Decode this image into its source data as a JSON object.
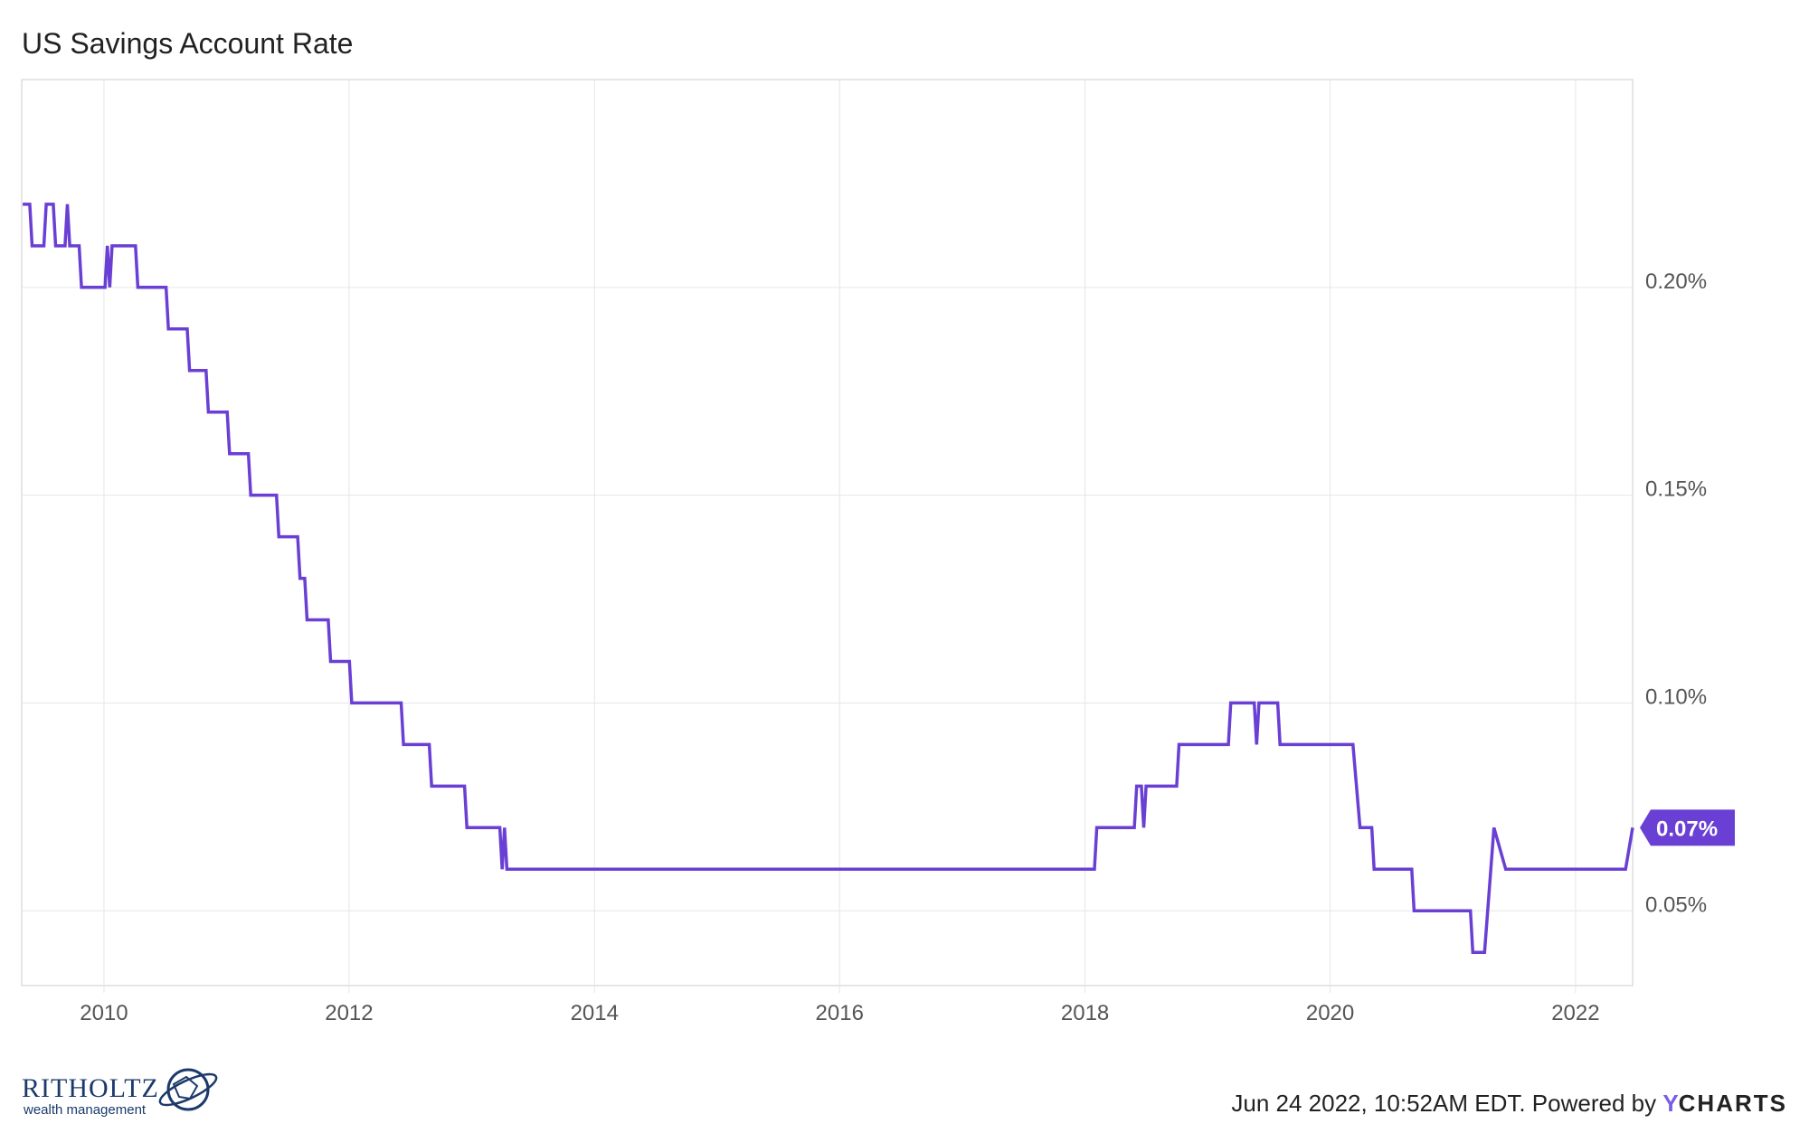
{
  "chart_data": {
    "type": "line",
    "title": "US Savings Account Rate",
    "x_axis": {
      "type": "date",
      "range": [
        "2009-05-01",
        "2022-06-20"
      ],
      "ticks": [
        "2010",
        "2012",
        "2014",
        "2016",
        "2018",
        "2020",
        "2022"
      ]
    },
    "y_axis": {
      "position": "right",
      "unit": "%",
      "range": [
        0.032,
        0.25
      ],
      "ticks": [
        "0.20%",
        "0.15%",
        "0.10%",
        "0.05%"
      ]
    },
    "grid": true,
    "series": [
      {
        "color": "#6a3fd4",
        "last_value_label": "0.07%",
        "points": [
          [
            "2009-05-04",
            0.22
          ],
          [
            "2009-05-25",
            0.22
          ],
          [
            "2009-06-01",
            0.21
          ],
          [
            "2009-07-06",
            0.21
          ],
          [
            "2009-07-13",
            0.22
          ],
          [
            "2009-08-03",
            0.22
          ],
          [
            "2009-08-10",
            0.21
          ],
          [
            "2009-09-07",
            0.21
          ],
          [
            "2009-09-14",
            0.22
          ],
          [
            "2009-09-21",
            0.21
          ],
          [
            "2009-10-19",
            0.21
          ],
          [
            "2009-10-26",
            0.2
          ],
          [
            "2010-01-04",
            0.2
          ],
          [
            "2010-01-11",
            0.21
          ],
          [
            "2010-01-18",
            0.2
          ],
          [
            "2010-01-25",
            0.21
          ],
          [
            "2010-04-05",
            0.21
          ],
          [
            "2010-04-12",
            0.2
          ],
          [
            "2010-07-05",
            0.2
          ],
          [
            "2010-07-12",
            0.19
          ],
          [
            "2010-09-06",
            0.19
          ],
          [
            "2010-09-13",
            0.18
          ],
          [
            "2010-11-01",
            0.18
          ],
          [
            "2010-11-08",
            0.17
          ],
          [
            "2011-01-03",
            0.17
          ],
          [
            "2011-01-10",
            0.16
          ],
          [
            "2011-03-07",
            0.16
          ],
          [
            "2011-03-14",
            0.15
          ],
          [
            "2011-05-30",
            0.15
          ],
          [
            "2011-06-06",
            0.14
          ],
          [
            "2011-08-01",
            0.14
          ],
          [
            "2011-08-08",
            0.13
          ],
          [
            "2011-08-22",
            0.13
          ],
          [
            "2011-08-29",
            0.12
          ],
          [
            "2011-10-31",
            0.12
          ],
          [
            "2011-11-07",
            0.11
          ],
          [
            "2012-01-02",
            0.11
          ],
          [
            "2012-01-09",
            0.1
          ],
          [
            "2012-06-04",
            0.1
          ],
          [
            "2012-06-11",
            0.09
          ],
          [
            "2012-08-27",
            0.09
          ],
          [
            "2012-09-03",
            0.08
          ],
          [
            "2012-12-10",
            0.08
          ],
          [
            "2012-12-17",
            0.07
          ],
          [
            "2013-03-25",
            0.07
          ],
          [
            "2013-04-01",
            0.06
          ],
          [
            "2013-04-08",
            0.07
          ],
          [
            "2013-04-15",
            0.06
          ],
          [
            "2018-01-29",
            0.06
          ],
          [
            "2018-02-05",
            0.07
          ],
          [
            "2018-05-28",
            0.07
          ],
          [
            "2018-06-04",
            0.08
          ],
          [
            "2018-06-18",
            0.08
          ],
          [
            "2018-06-25",
            0.07
          ],
          [
            "2018-07-02",
            0.08
          ],
          [
            "2018-10-01",
            0.08
          ],
          [
            "2018-10-08",
            0.09
          ],
          [
            "2019-03-04",
            0.09
          ],
          [
            "2019-03-11",
            0.1
          ],
          [
            "2019-05-20",
            0.1
          ],
          [
            "2019-05-27",
            0.09
          ],
          [
            "2019-06-03",
            0.1
          ],
          [
            "2019-07-29",
            0.1
          ],
          [
            "2019-08-05",
            0.09
          ],
          [
            "2020-03-09",
            0.09
          ],
          [
            "2020-03-30",
            0.07
          ],
          [
            "2020-05-04",
            0.07
          ],
          [
            "2020-05-11",
            0.06
          ],
          [
            "2020-08-31",
            0.06
          ],
          [
            "2020-09-07",
            0.05
          ],
          [
            "2021-02-22",
            0.05
          ],
          [
            "2021-03-01",
            0.04
          ],
          [
            "2021-04-05",
            0.04
          ],
          [
            "2021-05-03",
            0.07
          ],
          [
            "2021-06-07",
            0.06
          ],
          [
            "2022-05-30",
            0.06
          ],
          [
            "2022-06-20",
            0.07
          ]
        ]
      }
    ]
  },
  "footer": {
    "logo_name": "RITHOLTZ",
    "logo_sub": "wealth management",
    "credit_text": "Jun 24 2022, 10:52AM EDT. Powered by ",
    "brand_y": "Y",
    "brand_rest": "CHARTS"
  }
}
